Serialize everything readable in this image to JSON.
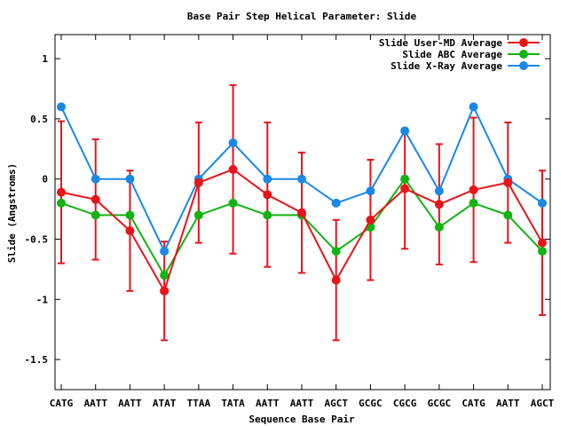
{
  "chart_data": {
    "type": "line",
    "title": "Base Pair Step Helical Parameter: Slide",
    "xlabel": "Sequence Base Pair",
    "ylabel": "Slide (Angstroms)",
    "categories": [
      "CATG",
      "AATT",
      "AATT",
      "ATAT",
      "TTAA",
      "TATA",
      "AATT",
      "AATT",
      "AGCT",
      "GCGC",
      "CGCG",
      "GCGC",
      "CATG",
      "AATT",
      "AGCT"
    ],
    "ylim": [
      -1.75,
      1.2
    ],
    "yticks": [
      1,
      0.5,
      0,
      -0.5,
      -1,
      -1.5
    ],
    "ytick_labels": [
      "1",
      "0.5",
      "0",
      "-0.5",
      "-1",
      "-1.5"
    ],
    "grid": false,
    "legend_position": "top-right",
    "series": [
      {
        "name": "Slide User-MD Average",
        "color": "#e8141a",
        "values": [
          -0.11,
          -0.17,
          -0.43,
          -0.93,
          -0.03,
          0.08,
          -0.13,
          -0.28,
          -0.84,
          -0.34,
          -0.08,
          -0.21,
          -0.09,
          -0.03,
          -0.53
        ],
        "errors": [
          0.59,
          0.5,
          0.5,
          0.41,
          0.5,
          0.7,
          0.6,
          0.5,
          0.5,
          0.5,
          0.5,
          0.5,
          0.6,
          0.5,
          0.6
        ]
      },
      {
        "name": "Slide ABC Average",
        "color": "#12b312",
        "values": [
          -0.2,
          -0.3,
          -0.3,
          -0.8,
          -0.3,
          -0.2,
          -0.3,
          -0.3,
          -0.6,
          -0.4,
          0.0,
          -0.4,
          -0.2,
          -0.3,
          -0.6
        ]
      },
      {
        "name": "Slide X-Ray Average",
        "color": "#1a88e8",
        "values": [
          0.6,
          0.0,
          0.0,
          -0.6,
          0.0,
          0.3,
          0.0,
          0.0,
          -0.2,
          -0.1,
          0.4,
          -0.1,
          0.6,
          0.0,
          -0.2
        ]
      }
    ]
  }
}
